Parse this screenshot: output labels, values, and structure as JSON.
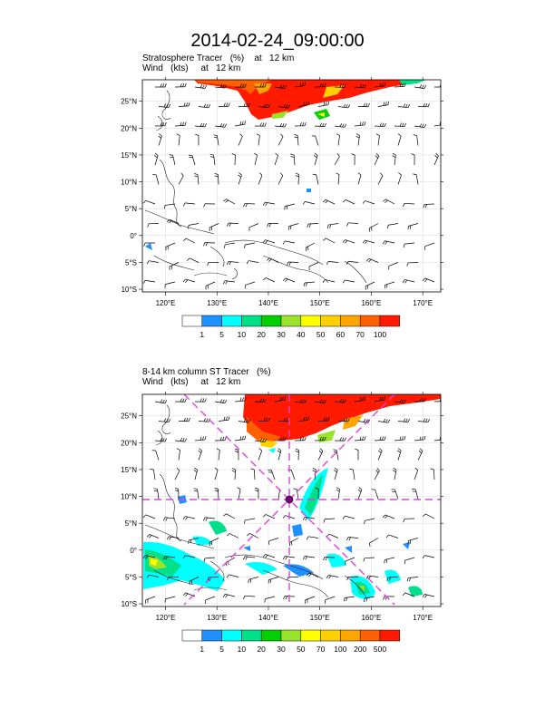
{
  "title": "2014-02-24_09:00:00",
  "panels": [
    {
      "line1": "Stratosphere Tracer   (%)    at   12 km",
      "line2": "Wind   (kts)     at   12 km",
      "colorbar": {
        "labels": [
          "1",
          "5",
          "10",
          "20",
          "30",
          "40",
          "50",
          "60",
          "70",
          "100"
        ],
        "colors": [
          "#ffffff",
          "#1e90ff",
          "#00ffff",
          "#00e08a",
          "#00d000",
          "#9be32a",
          "#ffff00",
          "#ffd000",
          "#ffa500",
          "#ff6000",
          "#ff1a00"
        ]
      }
    },
    {
      "line1": "8-14 km column ST Tracer   (%)",
      "line2": "Wind   (kts)     at   12 km",
      "colorbar": {
        "labels": [
          "1",
          "5",
          "10",
          "20",
          "30",
          "50",
          "70",
          "100",
          "200",
          "500"
        ],
        "colors": [
          "#ffffff",
          "#1e90ff",
          "#00ffff",
          "#00e08a",
          "#00d000",
          "#9be32a",
          "#ffff00",
          "#ffd000",
          "#ffa500",
          "#ff6000",
          "#ff1a00"
        ]
      }
    }
  ],
  "map": {
    "lon_range": [
      115.5,
      173.5
    ],
    "lat_range": [
      -10.5,
      29
    ],
    "lon_ticks": [
      "120°E",
      "130°E",
      "140°E",
      "150°E",
      "160°E",
      "170°E"
    ],
    "lat_ticks": [
      "25°N",
      "20°N",
      "15°N",
      "10°N",
      "5°N",
      "0°",
      "5°S",
      "10°S"
    ],
    "grid": true,
    "crosshair_color": "#e040e0"
  }
}
